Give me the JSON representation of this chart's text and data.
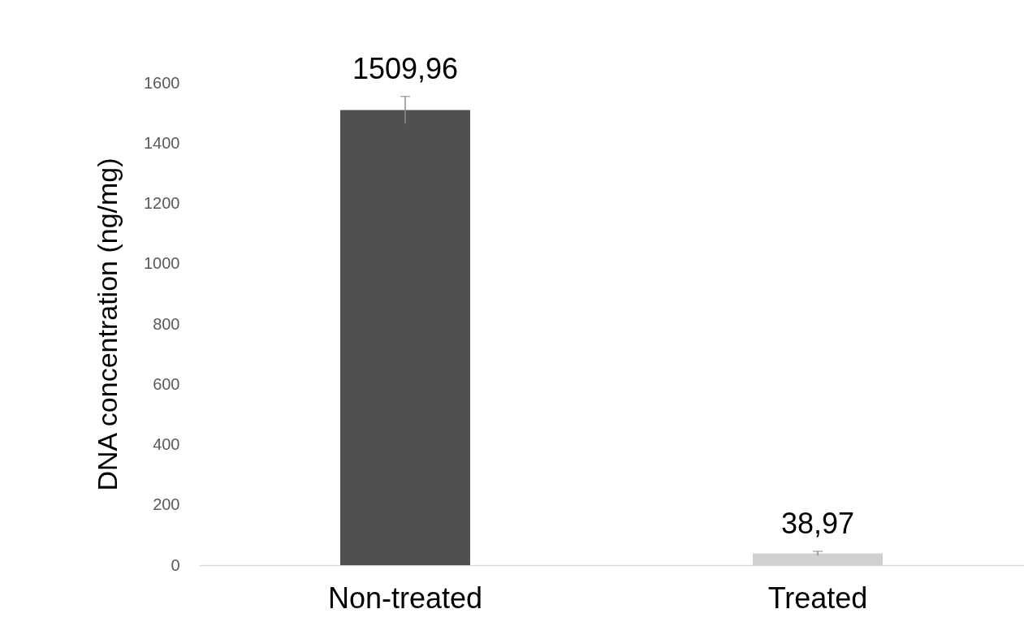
{
  "chart_data": {
    "type": "bar",
    "ylabel": "DNA concentration (ng/mg)",
    "categories": [
      "Non-treated",
      "Treated"
    ],
    "values": [
      1509.96,
      38.97
    ],
    "colors": [
      "#505050",
      "#d0d0d0"
    ],
    "errors": [
      45,
      7
    ],
    "value_labels": [
      "1509,96",
      "38,97"
    ],
    "ylim": [
      0,
      1600
    ],
    "yticks": [
      0,
      200,
      400,
      600,
      800,
      1000,
      1200,
      1400,
      1600
    ],
    "grid": false
  }
}
